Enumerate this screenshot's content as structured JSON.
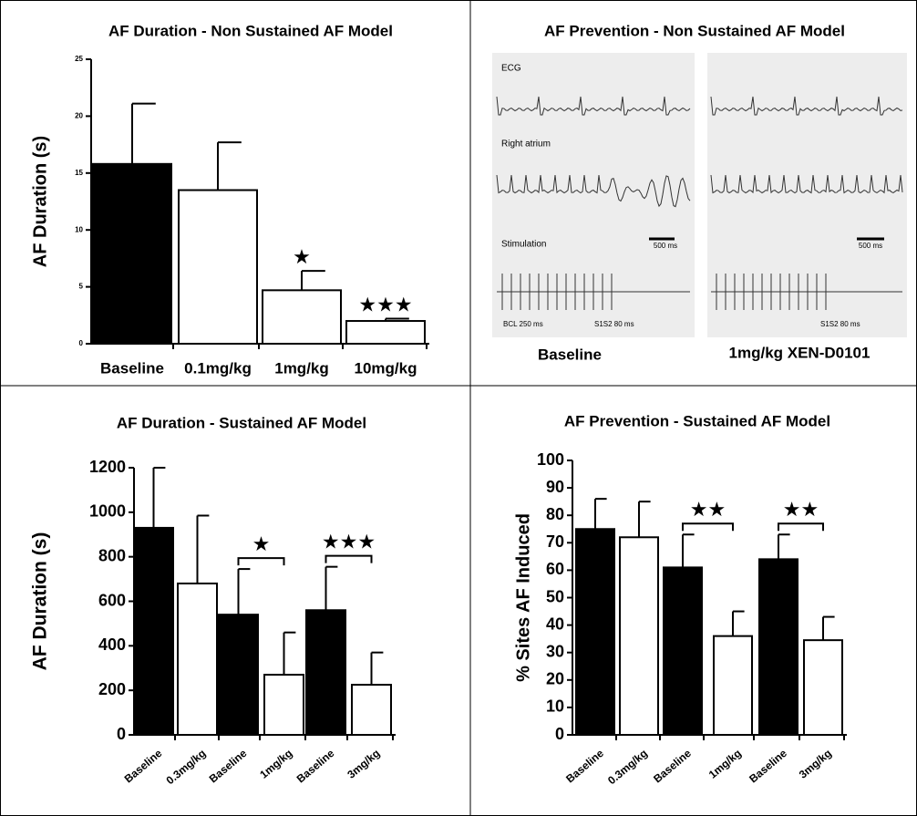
{
  "chart_data": [
    {
      "type": "bar",
      "title": "AF Duration - Non Sustained AF Model",
      "y_label": "AF Duration (s)",
      "categories": [
        "Baseline",
        "0.1mg/kg",
        "1mg/kg",
        "10mg/kg"
      ],
      "values": [
        15.8,
        13.5,
        4.7,
        2.0
      ],
      "errors": [
        5.3,
        4.2,
        1.7,
        0.2
      ],
      "colors": [
        "#000000",
        "#ffffff",
        "#ffffff",
        "#ffffff"
      ],
      "ylim": [
        0,
        25
      ],
      "yticks": [
        0,
        5,
        10,
        15,
        20,
        25
      ],
      "annotations": [
        "★",
        "★★★"
      ]
    },
    {
      "type": "bar",
      "title": "AF Duration - Sustained AF Model",
      "y_label": "AF Duration (s)",
      "categories": [
        "Baseline",
        "0.3mg/kg",
        "Baseline",
        "1mg/kg",
        "Baseline",
        "3mg/kg"
      ],
      "values": [
        930,
        680,
        540,
        270,
        560,
        225
      ],
      "errors": [
        270,
        305,
        205,
        190,
        195,
        145
      ],
      "colors": [
        "#000000",
        "#ffffff",
        "#000000",
        "#ffffff",
        "#000000",
        "#ffffff"
      ],
      "ylim": [
        0,
        1200
      ],
      "yticks": [
        0,
        200,
        400,
        600,
        800,
        1000,
        1200
      ],
      "annotations": [
        "★",
        "★★★"
      ]
    },
    {
      "type": "bar",
      "title": "AF Prevention - Sustained AF Model",
      "y_label": "% Sites AF Induced",
      "categories": [
        "Baseline",
        "0.3mg/kg",
        "Baseline",
        "1mg/kg",
        "Baseline",
        "3mg/kg"
      ],
      "values": [
        75,
        72,
        61,
        36,
        64,
        34.5
      ],
      "errors": [
        11,
        13,
        12,
        9,
        9,
        8.5
      ],
      "colors": [
        "#000000",
        "#ffffff",
        "#000000",
        "#ffffff",
        "#000000",
        "#ffffff"
      ],
      "ylim": [
        0,
        100
      ],
      "yticks": [
        0,
        10,
        20,
        30,
        40,
        50,
        60,
        70,
        80,
        90,
        100
      ],
      "annotations": [
        "★★",
        "★★"
      ]
    }
  ],
  "trace_panel": {
    "title": "AF Prevention - Non Sustained AF Model",
    "labels": [
      "ECG",
      "Right atrium",
      "Stimulation",
      "500 ms",
      "500 ms",
      "BCL 250 ms",
      "S1S2 80 ms",
      "S1S2 80 ms"
    ],
    "captions": [
      "Baseline",
      "1mg/kg XEN-D0101"
    ]
  }
}
